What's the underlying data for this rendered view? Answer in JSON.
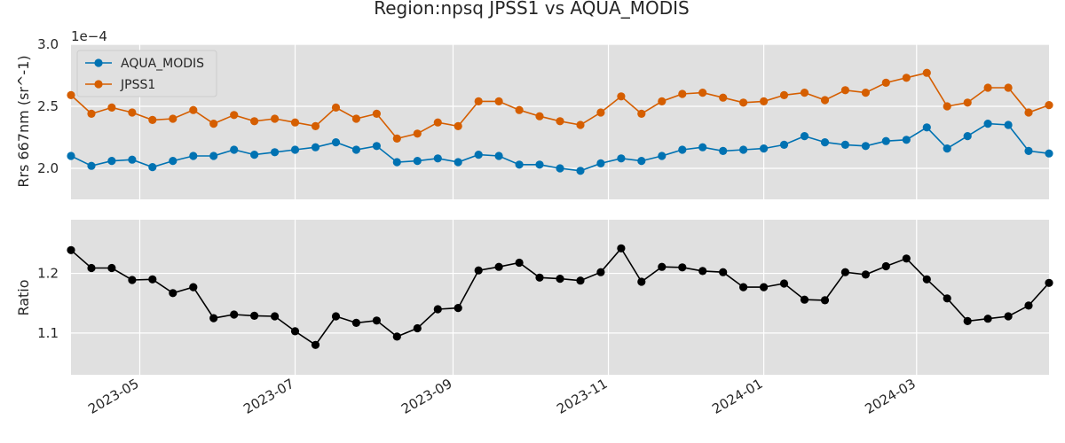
{
  "chart_data": [
    {
      "type": "line",
      "title": "Region:npsq JPSS1 vs AQUA_MODIS",
      "ylabel": "Rrs 667nm (sr^-1)",
      "y_multiplier_label": "1e−4",
      "ylim": [
        1.75,
        3.0
      ],
      "yticks": [
        2.0,
        2.5,
        3.0
      ],
      "ytick_labels": [
        "2.0",
        "2.5",
        "3.0"
      ],
      "legend_position": "upper-left",
      "grid": true,
      "series": [
        {
          "name": "AQUA_MODIS",
          "color": "#0072b2",
          "values": [
            2.1,
            2.02,
            2.06,
            2.07,
            2.01,
            2.06,
            2.1,
            2.1,
            2.15,
            2.11,
            2.13,
            2.15,
            2.17,
            2.21,
            2.15,
            2.18,
            2.05,
            2.06,
            2.08,
            2.05,
            2.11,
            2.1,
            2.03,
            2.03,
            2.0,
            1.98,
            2.04,
            2.08,
            2.06,
            2.1,
            2.15,
            2.17,
            2.14,
            2.15,
            2.16,
            2.19,
            2.26,
            2.21,
            2.19,
            2.18,
            2.22,
            2.23,
            2.33,
            2.16,
            2.26,
            2.36,
            2.35,
            2.14,
            2.12
          ]
        },
        {
          "name": "JPSS1",
          "color": "#d55e00",
          "values": [
            2.59,
            2.44,
            2.49,
            2.45,
            2.39,
            2.4,
            2.47,
            2.36,
            2.43,
            2.38,
            2.4,
            2.37,
            2.34,
            2.49,
            2.4,
            2.44,
            2.24,
            2.28,
            2.37,
            2.34,
            2.54,
            2.54,
            2.47,
            2.42,
            2.38,
            2.35,
            2.45,
            2.58,
            2.44,
            2.54,
            2.6,
            2.61,
            2.57,
            2.53,
            2.54,
            2.59,
            2.61,
            2.55,
            2.63,
            2.61,
            2.69,
            2.73,
            2.77,
            2.5,
            2.53,
            2.65,
            2.65,
            2.45,
            2.51
          ]
        }
      ]
    },
    {
      "type": "line",
      "ylabel": "Ratio",
      "ylim": [
        1.03,
        1.29
      ],
      "yticks": [
        1.1,
        1.2
      ],
      "ytick_labels": [
        "1.1",
        "1.2"
      ],
      "grid": true,
      "series": [
        {
          "color": "#000000",
          "values": [
            1.239,
            1.209,
            1.209,
            1.189,
            1.19,
            1.167,
            1.177,
            1.125,
            1.131,
            1.129,
            1.128,
            1.103,
            1.08,
            1.128,
            1.117,
            1.121,
            1.094,
            1.108,
            1.14,
            1.142,
            1.205,
            1.211,
            1.218,
            1.193,
            1.191,
            1.188,
            1.202,
            1.242,
            1.186,
            1.211,
            1.21,
            1.204,
            1.202,
            1.177,
            1.177,
            1.183,
            1.156,
            1.155,
            1.202,
            1.198,
            1.212,
            1.225,
            1.19,
            1.158,
            1.12,
            1.124,
            1.128,
            1.146,
            1.184
          ]
        }
      ]
    }
  ],
  "x_dates": [
    "2023-04-04",
    "2023-04-12",
    "2023-04-20",
    "2023-04-28",
    "2023-05-06",
    "2023-05-14",
    "2023-05-22",
    "2023-05-30",
    "2023-06-07",
    "2023-06-15",
    "2023-06-23",
    "2023-07-01",
    "2023-07-09",
    "2023-07-17",
    "2023-07-25",
    "2023-08-02",
    "2023-08-10",
    "2023-08-18",
    "2023-08-26",
    "2023-09-03",
    "2023-09-11",
    "2023-09-19",
    "2023-09-27",
    "2023-10-05",
    "2023-10-13",
    "2023-10-21",
    "2023-10-29",
    "2023-11-06",
    "2023-11-14",
    "2023-11-22",
    "2023-11-30",
    "2023-12-08",
    "2023-12-16",
    "2023-12-24",
    "2024-01-01",
    "2024-01-09",
    "2024-01-17",
    "2024-01-25",
    "2024-02-02",
    "2024-02-10",
    "2024-02-18",
    "2024-02-26",
    "2024-03-05",
    "2024-03-13",
    "2024-03-21",
    "2024-03-29",
    "2024-04-06",
    "2024-04-14",
    "2024-04-22"
  ],
  "x_range": [
    "2023-04-04",
    "2024-04-22"
  ],
  "x_ticks": [
    "2023-05-01",
    "2023-07-01",
    "2023-09-01",
    "2023-11-01",
    "2024-01-01",
    "2024-03-01"
  ],
  "x_tick_labels": [
    "2023-05",
    "2023-07",
    "2023-09",
    "2023-11",
    "2024-01",
    "2024-03"
  ]
}
